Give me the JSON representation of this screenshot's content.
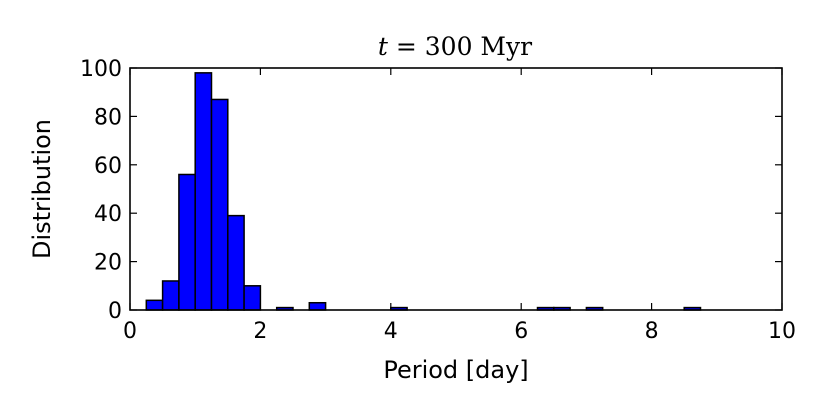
{
  "chart_data": {
    "type": "bar",
    "title": {
      "variable": "t",
      "equals": " = ",
      "value": "300",
      "unit": " Myr"
    },
    "xlabel": "Period [day]",
    "ylabel": "Distribution",
    "xlim": [
      0,
      10
    ],
    "ylim": [
      0,
      100
    ],
    "xticks": [
      0,
      2,
      4,
      6,
      8,
      10
    ],
    "yticks": [
      0,
      20,
      40,
      60,
      80,
      100
    ],
    "bar_color": "#0000ff",
    "edge_color": "#000000",
    "grid": false,
    "bins": [
      {
        "x0": 0.25,
        "x1": 0.5,
        "value": 4
      },
      {
        "x0": 0.5,
        "x1": 0.75,
        "value": 12
      },
      {
        "x0": 0.75,
        "x1": 1.0,
        "value": 56
      },
      {
        "x0": 1.0,
        "x1": 1.25,
        "value": 98
      },
      {
        "x0": 1.25,
        "x1": 1.5,
        "value": 87
      },
      {
        "x0": 1.5,
        "x1": 1.75,
        "value": 39
      },
      {
        "x0": 1.75,
        "x1": 2.0,
        "value": 10
      },
      {
        "x0": 2.25,
        "x1": 2.5,
        "value": 1
      },
      {
        "x0": 2.75,
        "x1": 3.0,
        "value": 3
      },
      {
        "x0": 4.0,
        "x1": 4.25,
        "value": 1
      },
      {
        "x0": 6.25,
        "x1": 6.5,
        "value": 1
      },
      {
        "x0": 6.5,
        "x1": 6.75,
        "value": 1
      },
      {
        "x0": 7.0,
        "x1": 7.25,
        "value": 1
      },
      {
        "x0": 8.5,
        "x1": 8.75,
        "value": 1
      }
    ]
  }
}
